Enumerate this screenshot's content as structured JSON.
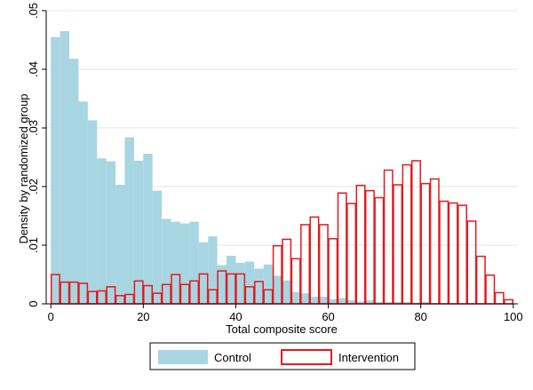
{
  "chart_data": {
    "type": "bar",
    "subtype": "overlaid-histogram",
    "title": "",
    "xlabel": "Total composite score",
    "ylabel": "Density by randomized group",
    "xlim": [
      -1,
      101
    ],
    "ylim": [
      0,
      0.05
    ],
    "x_ticks": [
      0,
      20,
      40,
      60,
      80,
      100
    ],
    "x_tick_labels": [
      "0",
      "20",
      "40",
      "60",
      "80",
      "100"
    ],
    "y_ticks": [
      0,
      0.01,
      0.02,
      0.03,
      0.04,
      0.05
    ],
    "y_tick_labels": [
      "0",
      ".01",
      ".02",
      ".03",
      ".04",
      ".05"
    ],
    "bin_width": 2,
    "grid": "horizontal",
    "legend_position": "bottom",
    "series": [
      {
        "name": "Control",
        "style": "filled",
        "fill_color": "#a8d5e2",
        "bin_starts": [
          0,
          2,
          4,
          6,
          8,
          10,
          12,
          14,
          16,
          18,
          20,
          22,
          24,
          26,
          28,
          30,
          32,
          34,
          36,
          38,
          40,
          42,
          44,
          46,
          48,
          50,
          52,
          54,
          56,
          58,
          60,
          62,
          64,
          66,
          68,
          70,
          72,
          74,
          76,
          78,
          80,
          82,
          84,
          86,
          88,
          90,
          92,
          94,
          96,
          98
        ],
        "values": [
          0.0455,
          0.0465,
          0.0418,
          0.0345,
          0.0313,
          0.0248,
          0.0243,
          0.0203,
          0.0284,
          0.0244,
          0.0256,
          0.0193,
          0.0145,
          0.014,
          0.0137,
          0.014,
          0.0105,
          0.0115,
          0.0066,
          0.0082,
          0.007,
          0.0072,
          0.006,
          0.0067,
          0.0048,
          0.004,
          0.002,
          0.0018,
          0.0012,
          0.0012,
          0.0008,
          0.001,
          0.0006,
          0.0004,
          0.0006,
          0.0003,
          0.0003,
          0.0003,
          0.0003,
          0.0002,
          0.0003,
          0.0001,
          0.0001,
          0.0001,
          0.0001,
          0.0001,
          0,
          0,
          0,
          0
        ]
      },
      {
        "name": "Intervention",
        "style": "outline",
        "line_color": "#e31a1c",
        "bin_starts": [
          0,
          2,
          4,
          6,
          8,
          10,
          12,
          14,
          16,
          18,
          20,
          22,
          24,
          26,
          28,
          30,
          32,
          34,
          36,
          38,
          40,
          42,
          44,
          46,
          48,
          50,
          52,
          54,
          56,
          58,
          60,
          62,
          64,
          66,
          68,
          70,
          72,
          74,
          76,
          78,
          80,
          82,
          84,
          86,
          88,
          90,
          92,
          94,
          96,
          98
        ],
        "values": [
          0.005,
          0.0037,
          0.0037,
          0.0035,
          0.0021,
          0.0022,
          0.0029,
          0.0014,
          0.0016,
          0.0039,
          0.0031,
          0.0018,
          0.0033,
          0.005,
          0.0033,
          0.0039,
          0.0051,
          0.0024,
          0.0056,
          0.0051,
          0.0051,
          0.0029,
          0.0038,
          0.0024,
          0.0099,
          0.011,
          0.0077,
          0.0135,
          0.0148,
          0.0135,
          0.0111,
          0.0189,
          0.0171,
          0.0202,
          0.0193,
          0.0181,
          0.0228,
          0.0203,
          0.0237,
          0.0244,
          0.0205,
          0.0213,
          0.0175,
          0.0172,
          0.0168,
          0.0141,
          0.0081,
          0.0049,
          0.0019,
          0.0007
        ]
      }
    ]
  }
}
